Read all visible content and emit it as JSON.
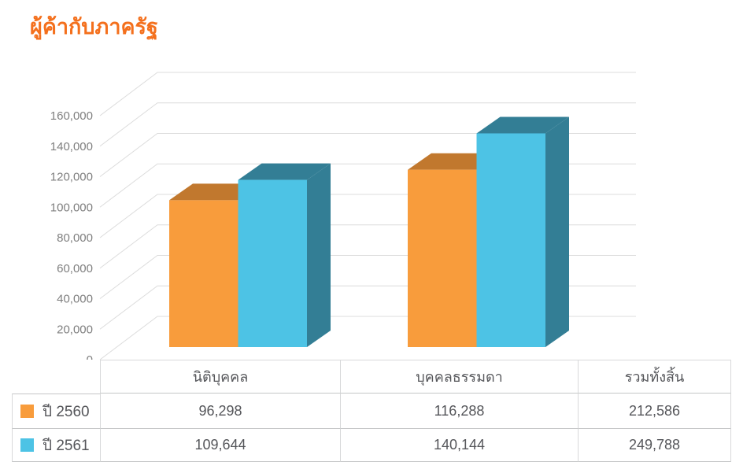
{
  "title": "ผู้ค้ากับภาครัฐ",
  "colors": {
    "title": "#F4701D",
    "grid": "#DCDCDC",
    "axis_label": "#7F7F7F",
    "table_text": "#55565A",
    "border_vertical": "#D8D9DA",
    "border_horizontal": "#C5C6C7",
    "series_2560": "#F89C3C",
    "series_2560_shade": "#C1782E",
    "series_2561": "#4DC3E5",
    "series_2561_shade": "#337E95"
  },
  "chart_data": {
    "type": "bar",
    "projection": "3d",
    "title": "ผู้ค้ากับภาครัฐ",
    "categories": [
      "นิติบุคคล",
      "บุคคลธรรมดา"
    ],
    "series": [
      {
        "name": "ปี 2560",
        "values": [
          96298,
          116288
        ],
        "total": 212586,
        "color": "#F89C3C",
        "shade": "#C1782E"
      },
      {
        "name": "ปี 2561",
        "values": [
          109644,
          140144
        ],
        "total": 249788,
        "color": "#4DC3E5",
        "shade": "#337E95"
      }
    ],
    "ylim": [
      0,
      160000
    ],
    "ytick_step": 20000,
    "ytick_labels": [
      "0",
      "20,000",
      "40,000",
      "60,000",
      "80,000",
      "100,000",
      "120,000",
      "140,000",
      "160,000"
    ],
    "grid": true,
    "legend_position": "table-left-column"
  },
  "table": {
    "headers": [
      "นิติบุคคล",
      "บุคคลธรรมดา",
      "รวมทั้งสิ้น"
    ],
    "rows": [
      {
        "legend": "ปี 2560",
        "swatch": "#F89C3C",
        "values": [
          "96,298",
          "116,288",
          "212,586"
        ]
      },
      {
        "legend": "ปี 2561",
        "swatch": "#4DC3E5",
        "values": [
          "109,644",
          "140,144",
          "249,788"
        ]
      }
    ]
  }
}
